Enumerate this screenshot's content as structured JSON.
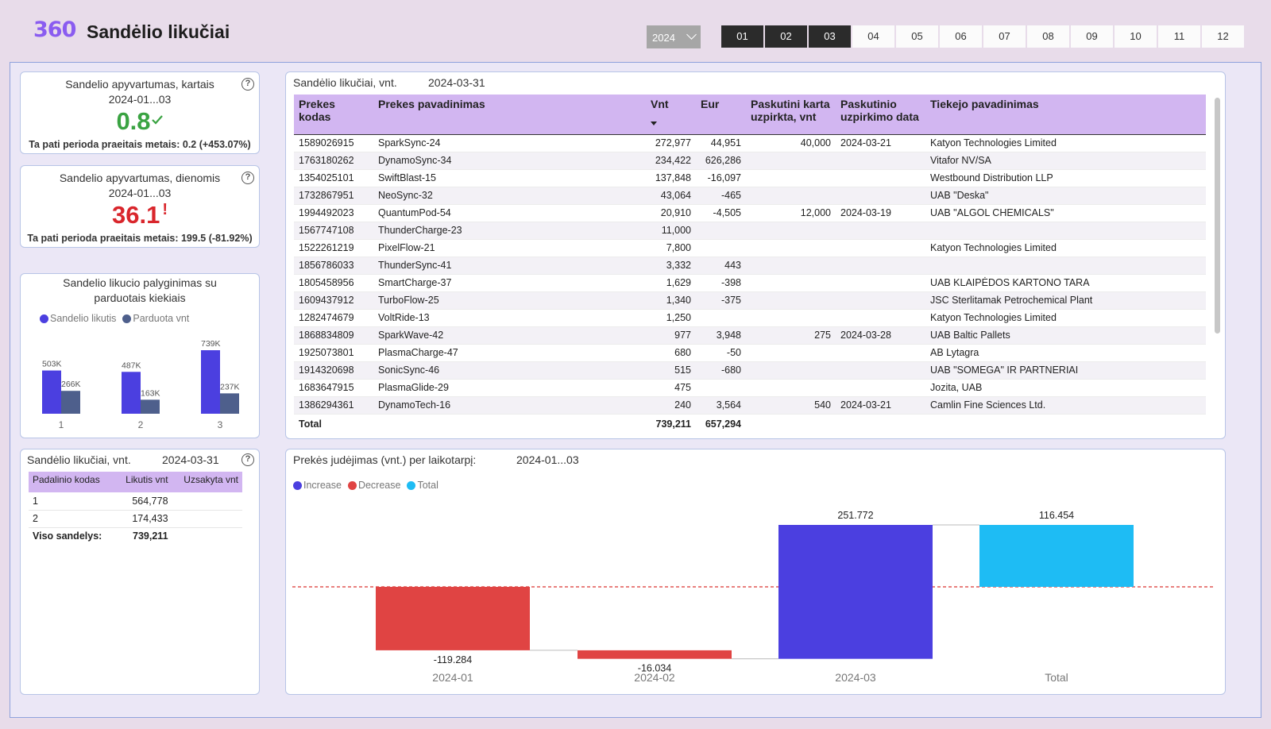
{
  "header": {
    "logo": "360",
    "title": "Sandėlio likučiai",
    "year": "2024",
    "months": [
      "01",
      "02",
      "03",
      "04",
      "05",
      "06",
      "07",
      "08",
      "09",
      "10",
      "11",
      "12"
    ],
    "selected_months": [
      "01",
      "02",
      "03"
    ]
  },
  "kpi_turnover_times": {
    "title": "Sandelio apyvartumas, kartais",
    "period": "2024-01...03",
    "value": "0.8",
    "status_icon": "check-icon",
    "color": "#3aa342",
    "footer": "Ta pati perioda praeitais metais: 0.2 (+453.07%)"
  },
  "kpi_turnover_days": {
    "title": "Sandelio apyvartumas, dienomis",
    "period": "2024-01...03",
    "value": "36.1",
    "status_icon": "exclamation-icon",
    "color": "#d9262c",
    "footer": "Ta pati perioda praeitais metais: 199.5 (-81.92%)"
  },
  "comparison_chart": {
    "title_line1": "Sandelio likucio palyginimas su",
    "title_line2": "parduotais kiekiais",
    "chart_data": {
      "type": "bar",
      "categories": [
        "1",
        "2",
        "3"
      ],
      "series": [
        {
          "name": "Sandelio likutis",
          "color": "#4b3fe0",
          "values": [
            503000,
            487000,
            739000
          ],
          "labels": [
            "503K",
            "487K",
            "739K"
          ]
        },
        {
          "name": "Parduota vnt",
          "color": "#4e5f8c",
          "values": [
            266000,
            163000,
            237000
          ],
          "labels": [
            "266K",
            "163K",
            "237K"
          ]
        }
      ]
    }
  },
  "branch_table": {
    "title": "Sandėlio likučiai, vnt.",
    "date": "2024-03-31",
    "columns": [
      "Padalinio kodas",
      "Likutis vnt",
      "Uzsakyta vnt"
    ],
    "rows": [
      {
        "code": "1",
        "stock": "564,778",
        "ordered": ""
      },
      {
        "code": "2",
        "stock": "174,433",
        "ordered": ""
      }
    ],
    "total_label": "Viso sandelys:",
    "total_value": "739,211"
  },
  "stock_table": {
    "title": "Sandėlio likučiai, vnt.",
    "date": "2024-03-31",
    "columns": {
      "code": "Prekes kodas",
      "name": "Prekes pavadinimas",
      "qty": "Vnt",
      "eur": "Eur",
      "last_qty_l1": "Paskutini karta",
      "last_qty_l2": "uzpirkta, vnt",
      "last_date_l1": "Paskutinio",
      "last_date_l2": "uzpirkimo data",
      "supplier": "Tiekejo pavadinimas"
    },
    "rows": [
      {
        "code": "1589026915",
        "name": "SparkSync-24",
        "qty": "272,977",
        "eur": "44,951",
        "last_qty": "40,000",
        "last_date": "2024-03-21",
        "supplier": "Katyon Technologies Limited"
      },
      {
        "code": "1763180262",
        "name": "DynamoSync-34",
        "qty": "234,422",
        "eur": "626,286",
        "last_qty": "",
        "last_date": "",
        "supplier": "Vitafor NV/SA"
      },
      {
        "code": "1354025101",
        "name": "SwiftBlast-15",
        "qty": "137,848",
        "eur": "-16,097",
        "last_qty": "",
        "last_date": "",
        "supplier": "Westbound Distribution LLP"
      },
      {
        "code": "1732867951",
        "name": "NeoSync-32",
        "qty": "43,064",
        "eur": "-465",
        "last_qty": "",
        "last_date": "",
        "supplier": "UAB \"Deska\""
      },
      {
        "code": "1994492023",
        "name": "QuantumPod-54",
        "qty": "20,910",
        "eur": "-4,505",
        "last_qty": "12,000",
        "last_date": "2024-03-19",
        "supplier": "UAB \"ALGOL CHEMICALS\""
      },
      {
        "code": "1567747108",
        "name": "ThunderCharge-23",
        "qty": "11,000",
        "eur": "",
        "last_qty": "",
        "last_date": "",
        "supplier": ""
      },
      {
        "code": "1522261219",
        "name": "PixelFlow-21",
        "qty": "7,800",
        "eur": "",
        "last_qty": "",
        "last_date": "",
        "supplier": "Katyon Technologies Limited"
      },
      {
        "code": "1856786033",
        "name": "ThunderSync-41",
        "qty": "3,332",
        "eur": "443",
        "last_qty": "",
        "last_date": "",
        "supplier": ""
      },
      {
        "code": "1805458956",
        "name": "SmartCharge-37",
        "qty": "1,629",
        "eur": "-398",
        "last_qty": "",
        "last_date": "",
        "supplier": "UAB KLAIPĖDOS KARTONO TARA"
      },
      {
        "code": "1609437912",
        "name": "TurboFlow-25",
        "qty": "1,340",
        "eur": "-375",
        "last_qty": "",
        "last_date": "",
        "supplier": "JSC Sterlitamak Petrochemical Plant"
      },
      {
        "code": "1282474679",
        "name": "VoltRide-13",
        "qty": "1,250",
        "eur": "",
        "last_qty": "",
        "last_date": "",
        "supplier": "Katyon Technologies Limited"
      },
      {
        "code": "1868834809",
        "name": "SparkWave-42",
        "qty": "977",
        "eur": "3,948",
        "last_qty": "275",
        "last_date": "2024-03-28",
        "supplier": "UAB Baltic Pallets"
      },
      {
        "code": "1925073801",
        "name": "PlasmaCharge-47",
        "qty": "680",
        "eur": "-50",
        "last_qty": "",
        "last_date": "",
        "supplier": "AB Lytagra"
      },
      {
        "code": "1914320698",
        "name": "SonicSync-46",
        "qty": "515",
        "eur": "-680",
        "last_qty": "",
        "last_date": "",
        "supplier": "UAB \"SOMEGA\" IR PARTNERIAI"
      },
      {
        "code": "1683647915",
        "name": "PlasmaGlide-29",
        "qty": "475",
        "eur": "",
        "last_qty": "",
        "last_date": "",
        "supplier": "Jozita, UAB"
      },
      {
        "code": "1386294361",
        "name": "DynamoTech-16",
        "qty": "240",
        "eur": "3,564",
        "last_qty": "540",
        "last_date": "2024-03-21",
        "supplier": "Camlin Fine Sciences Ltd."
      }
    ],
    "total": {
      "label": "Total",
      "qty": "739,211",
      "eur": "657,294"
    }
  },
  "waterfall": {
    "title": "Prekės judėjimas (vnt.) per laikotarpį:",
    "period": "2024-01...03",
    "legend": [
      {
        "name": "Increase",
        "color": "#4b3fe0"
      },
      {
        "name": "Decrease",
        "color": "#e04443"
      },
      {
        "name": "Total",
        "color": "#1ebcf4"
      }
    ],
    "chart_data": {
      "type": "bar",
      "subtype": "waterfall",
      "categories": [
        "2024-01",
        "2024-02",
        "2024-03",
        "Total"
      ],
      "values": [
        -119284,
        -16034,
        251772,
        116454
      ],
      "labels": [
        "-119.284",
        "-16.034",
        "251.772",
        "116.454"
      ],
      "kinds": [
        "decrease",
        "decrease",
        "increase",
        "total"
      ],
      "baseline": 0,
      "reference_line": "dashed red at 0"
    }
  }
}
